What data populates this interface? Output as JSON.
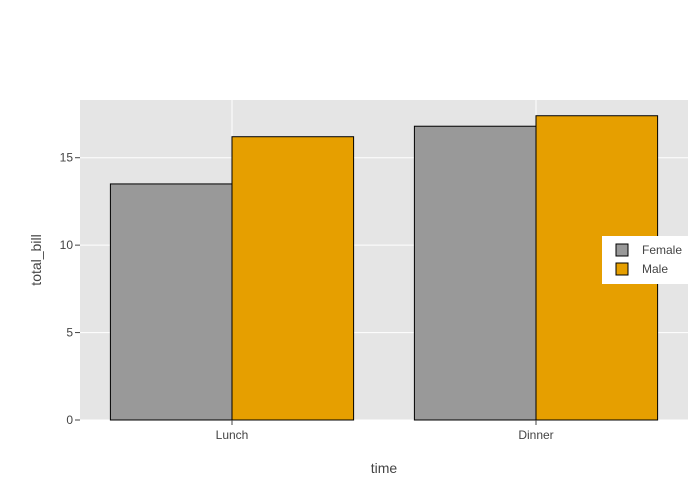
{
  "chart_data": {
    "type": "bar",
    "categories": [
      "Lunch",
      "Dinner"
    ],
    "series": [
      {
        "name": "Female",
        "values": [
          13.5,
          16.8
        ],
        "color": "#999999"
      },
      {
        "name": "Male",
        "values": [
          16.2,
          17.4
        ],
        "color": "#E69F00"
      }
    ],
    "xlabel": "time",
    "ylabel": "total_bill",
    "ylim": [
      0,
      18.3
    ],
    "yticks": [
      0,
      5,
      10,
      15
    ],
    "grid": true,
    "legend_position": "right",
    "plot_background": "#E5E5E5",
    "grid_color": "#ffffff",
    "bar_outline": "#000000"
  }
}
